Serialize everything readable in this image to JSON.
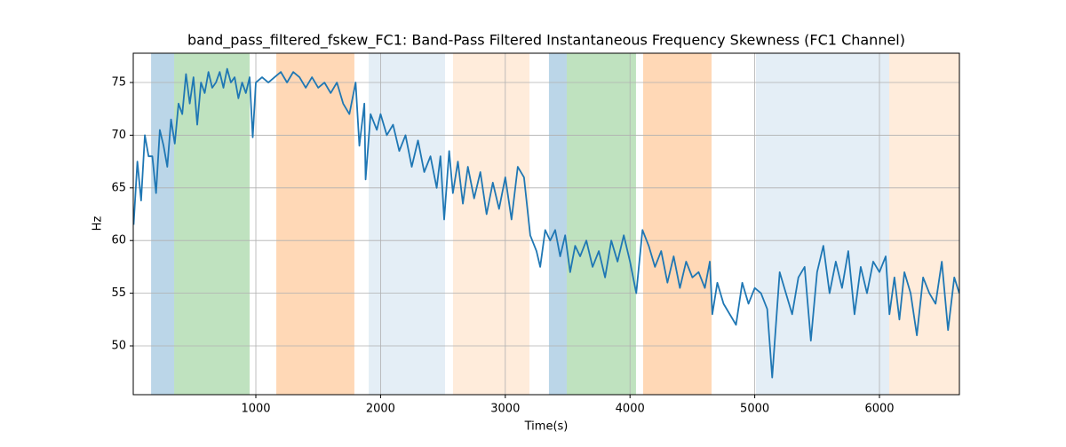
{
  "chart_data": {
    "type": "line",
    "title": "band_pass_filtered_fskew_FC1: Band-Pass Filtered Instantaneous Frequency Skewness (FC1 Channel)",
    "xlabel": "Time(s)",
    "ylabel": "Hz",
    "color": "#1f77b4",
    "grid": true,
    "xlim": [
      17,
      6641
    ],
    "ylim": [
      45.37,
      77.78
    ],
    "xticks": [
      1000,
      2000,
      3000,
      4000,
      5000,
      6000
    ],
    "yticks": [
      50,
      55,
      60,
      65,
      70,
      75
    ],
    "spans": [
      {
        "start": 160,
        "end": 345,
        "color": "#1f77b4",
        "alpha": 0.3
      },
      {
        "start": 345,
        "end": 950,
        "color": "#2ca02c",
        "alpha": 0.3
      },
      {
        "start": 1164,
        "end": 1790,
        "color": "#ff7f0e",
        "alpha": 0.3
      },
      {
        "start": 1905,
        "end": 2517,
        "color": "#1f77b4",
        "alpha": 0.12
      },
      {
        "start": 2581,
        "end": 3194,
        "color": "#ff7f0e",
        "alpha": 0.15
      },
      {
        "start": 3350,
        "end": 3493,
        "color": "#1f77b4",
        "alpha": 0.3
      },
      {
        "start": 3493,
        "end": 4048,
        "color": "#2ca02c",
        "alpha": 0.3
      },
      {
        "start": 4105,
        "end": 4654,
        "color": "#ff7f0e",
        "alpha": 0.3
      },
      {
        "start": 5010,
        "end": 6078,
        "color": "#1f77b4",
        "alpha": 0.12
      },
      {
        "start": 6078,
        "end": 6641,
        "color": "#ff7f0e",
        "alpha": 0.15
      }
    ],
    "x": [
      20,
      50,
      80,
      110,
      140,
      170,
      200,
      230,
      260,
      290,
      320,
      350,
      380,
      410,
      440,
      470,
      500,
      530,
      560,
      590,
      620,
      650,
      680,
      710,
      740,
      770,
      800,
      830,
      860,
      890,
      920,
      950,
      975,
      1000,
      1050,
      1100,
      1150,
      1200,
      1250,
      1300,
      1350,
      1400,
      1450,
      1500,
      1550,
      1600,
      1650,
      1700,
      1750,
      1800,
      1830,
      1870,
      1880,
      1920,
      1970,
      2000,
      2050,
      2100,
      2150,
      2200,
      2250,
      2300,
      2350,
      2400,
      2450,
      2480,
      2510,
      2550,
      2580,
      2620,
      2660,
      2700,
      2750,
      2800,
      2850,
      2900,
      2950,
      3000,
      3050,
      3100,
      3150,
      3200,
      3250,
      3280,
      3320,
      3360,
      3400,
      3440,
      3480,
      3520,
      3560,
      3600,
      3650,
      3700,
      3750,
      3800,
      3850,
      3900,
      3950,
      4000,
      4050,
      4100,
      4150,
      4200,
      4250,
      4300,
      4350,
      4400,
      4450,
      4500,
      4550,
      4600,
      4640,
      4660,
      4700,
      4750,
      4800,
      4850,
      4900,
      4950,
      5000,
      5050,
      5100,
      5140,
      5200,
      5250,
      5300,
      5350,
      5400,
      5450,
      5500,
      5550,
      5600,
      5650,
      5700,
      5750,
      5800,
      5850,
      5900,
      5950,
      6000,
      6050,
      6080,
      6120,
      6160,
      6200,
      6250,
      6300,
      6350,
      6400,
      6450,
      6500,
      6550,
      6600,
      6640
    ],
    "values": [
      61.5,
      67.5,
      63.8,
      70.0,
      68.0,
      68.0,
      64.5,
      70.5,
      69.0,
      67.0,
      71.5,
      69.2,
      73.0,
      72.0,
      75.8,
      73.0,
      75.5,
      71.0,
      75.0,
      74.0,
      76.0,
      74.5,
      75.0,
      76.0,
      74.5,
      76.3,
      75.0,
      75.5,
      73.5,
      75.0,
      74.0,
      75.5,
      69.8,
      75.0,
      75.5,
      75.0,
      75.5,
      76.0,
      75.0,
      76.0,
      75.5,
      74.5,
      75.5,
      74.5,
      75.0,
      74.0,
      75.0,
      73.0,
      72.0,
      75.0,
      69.0,
      73.0,
      65.8,
      72.0,
      70.5,
      72.0,
      70.0,
      71.0,
      68.5,
      70.0,
      67.0,
      69.5,
      66.5,
      68.0,
      65.0,
      68.0,
      62.0,
      68.5,
      64.5,
      67.5,
      63.5,
      67.0,
      64.0,
      66.5,
      62.5,
      65.5,
      63.0,
      66.0,
      62.0,
      67.0,
      66.0,
      60.5,
      59.0,
      57.5,
      61.0,
      60.0,
      61.0,
      58.5,
      60.5,
      57.0,
      59.5,
      58.5,
      60.0,
      57.5,
      59.0,
      56.5,
      60.0,
      58.0,
      60.5,
      58.0,
      55.0,
      61.0,
      59.5,
      57.5,
      59.0,
      56.0,
      58.5,
      55.5,
      58.0,
      56.5,
      57.0,
      55.5,
      58.0,
      53.0,
      56.0,
      54.0,
      53.0,
      52.0,
      56.0,
      54.0,
      55.5,
      55.0,
      53.5,
      47.0,
      57.0,
      55.0,
      53.0,
      56.5,
      57.5,
      50.5,
      57.0,
      59.5,
      55.0,
      58.0,
      55.5,
      59.0,
      53.0,
      57.5,
      55.0,
      58.0,
      57.0,
      58.5,
      53.0,
      56.5,
      52.5,
      57.0,
      55.0,
      51.0,
      56.5,
      55.0,
      54.0,
      58.0,
      51.5,
      56.5,
      55.0
    ]
  }
}
